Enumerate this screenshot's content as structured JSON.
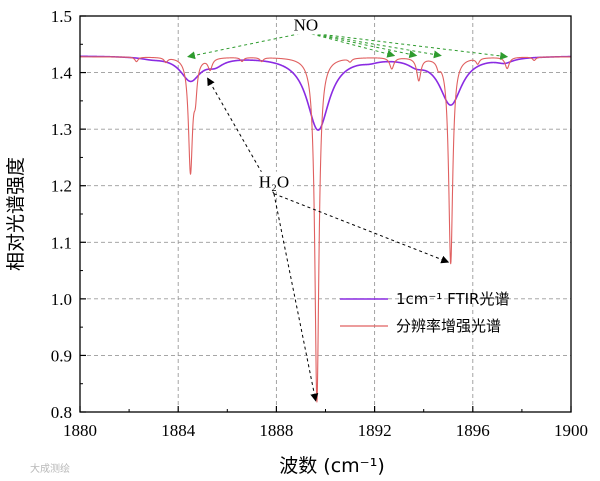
{
  "chart_data": {
    "type": "line",
    "xlabel": "波数 (cm⁻¹)",
    "ylabel": "相对光谱强度",
    "xlim": [
      1880,
      1900
    ],
    "ylim": [
      0.8,
      1.5
    ],
    "x_ticks": [
      1880,
      1884,
      1888,
      1892,
      1896,
      1900
    ],
    "y_ticks": [
      0.8,
      0.9,
      1.0,
      1.1,
      1.2,
      1.3,
      1.4,
      1.5
    ],
    "x_tick_labels": [
      "1880",
      "1884",
      "1888",
      "1892",
      "1896",
      "1900"
    ],
    "y_tick_labels": [
      "0.8",
      "0.9",
      "1.0",
      "1.1",
      "1.2",
      "1.3",
      "1.4",
      "1.5"
    ],
    "grid": true,
    "legend_position": "bottom-right",
    "series": [
      {
        "name": "1cm⁻¹ FTIR光谱",
        "color": "#8a2be2",
        "baseline": 1.43,
        "features": [
          {
            "center": 1882.9,
            "depth": 0.003,
            "width": 0.5
          },
          {
            "center": 1884.5,
            "depth": 0.042,
            "width": 0.5
          },
          {
            "center": 1885.5,
            "depth": 0.012,
            "width": 0.4
          },
          {
            "center": 1889.7,
            "depth": 0.13,
            "width": 0.55
          },
          {
            "center": 1891.8,
            "depth": 0.004,
            "width": 0.4
          },
          {
            "center": 1893.7,
            "depth": 0.01,
            "width": 0.4
          },
          {
            "center": 1895.1,
            "depth": 0.085,
            "width": 0.55
          },
          {
            "center": 1897.3,
            "depth": 0.008,
            "width": 0.4
          }
        ]
      },
      {
        "name": "分辨率增强光谱",
        "color": "#e06060",
        "baseline": 1.428,
        "features": [
          {
            "center": 1882.3,
            "depth": 0.008,
            "width": 0.08
          },
          {
            "center": 1883.5,
            "depth": 0.008,
            "width": 0.08
          },
          {
            "center": 1884.5,
            "depth": 0.2,
            "width": 0.1
          },
          {
            "center": 1884.7,
            "depth": 0.05,
            "width": 0.08
          },
          {
            "center": 1885.3,
            "depth": 0.02,
            "width": 0.1
          },
          {
            "center": 1886.6,
            "depth": 0.007,
            "width": 0.08
          },
          {
            "center": 1887.4,
            "depth": 0.007,
            "width": 0.08
          },
          {
            "center": 1889.65,
            "depth": 0.61,
            "width": 0.1
          },
          {
            "center": 1891.0,
            "depth": 0.006,
            "width": 0.08
          },
          {
            "center": 1892.7,
            "depth": 0.02,
            "width": 0.1
          },
          {
            "center": 1893.8,
            "depth": 0.04,
            "width": 0.1
          },
          {
            "center": 1894.6,
            "depth": 0.012,
            "width": 0.08
          },
          {
            "center": 1895.1,
            "depth": 0.365,
            "width": 0.1
          },
          {
            "center": 1896.2,
            "depth": 0.01,
            "width": 0.08
          },
          {
            "center": 1897.4,
            "depth": 0.02,
            "width": 0.1
          },
          {
            "center": 1898.5,
            "depth": 0.006,
            "width": 0.08
          }
        ]
      }
    ],
    "annotations": [
      {
        "id": "no",
        "text": "NO",
        "anchor": {
          "x": 1889.2,
          "y": 1.478
        },
        "color": "#2e9b2e",
        "dash": "3,3",
        "targets": [
          {
            "x": 1884.4,
            "y": 1.428
          },
          {
            "x": 1892.8,
            "y": 1.43
          },
          {
            "x": 1893.7,
            "y": 1.43
          },
          {
            "x": 1894.7,
            "y": 1.43
          },
          {
            "x": 1897.4,
            "y": 1.428
          }
        ]
      },
      {
        "id": "h2o",
        "text": "H₂O",
        "anchor": {
          "x": 1887.9,
          "y": 1.2
        },
        "color": "#000000",
        "dash": "3,3",
        "targets": [
          {
            "x": 1885.2,
            "y": 1.39
          },
          {
            "x": 1889.6,
            "y": 0.82
          },
          {
            "x": 1895.0,
            "y": 1.065
          }
        ]
      }
    ]
  },
  "watermark": "大成测绘"
}
